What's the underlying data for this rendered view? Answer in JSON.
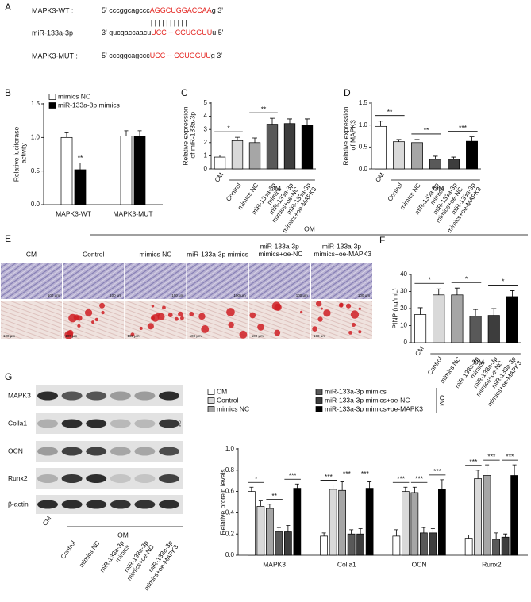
{
  "panel_a": {
    "panel_label": "A",
    "seed_color": "#e3211c",
    "rows": [
      {
        "label": "MAPK3-WT :",
        "sequence": [
          "5' cccggcagccc",
          "AGGCUGGACCAA",
          "g 3'"
        ]
      },
      {
        "label": "miR-133a-3p",
        "sequence": [
          "3' gucgaccaacu",
          "UCC -- CCUGGUU",
          "u 5'"
        ]
      },
      {
        "label": "MAPK3-MUT :",
        "sequence": [
          "5' cccggcagccc",
          "UCC -- CCUGGUU",
          "g 3'"
        ]
      }
    ],
    "pairing": "| | |     |     | | | | | |"
  },
  "chart_data": [
    {
      "type": "bar",
      "panel_label": "B",
      "ylabel": "Relative luciferase activity",
      "categories": [
        "MAPK3-WT",
        "MAPK3-MUT"
      ],
      "series": [
        {
          "name": "mimics NC",
          "color": "#ffffff",
          "values": [
            1.0,
            1.02
          ],
          "errors": [
            0.07,
            0.08
          ]
        },
        {
          "name": "miR-133a-3p mimics",
          "color": "#000000",
          "values": [
            0.52,
            1.02
          ],
          "errors": [
            0.1,
            0.08
          ]
        }
      ],
      "ylim": [
        0,
        1.5
      ],
      "yticks": [
        {
          "value": 0,
          "label": "0.0"
        },
        {
          "value": 0.5,
          "label": "0.5"
        },
        {
          "value": 1,
          "label": "1.0"
        },
        {
          "value": 1.5,
          "label": "1.5"
        }
      ],
      "annotations": [
        {
          "label": "**",
          "category": 0,
          "series": 1
        }
      ]
    },
    {
      "type": "bar",
      "panel_label": "C",
      "ylabel": "Relative expression of miR-133a-3p",
      "categories": [
        "CM",
        "Control",
        "mimics NC",
        "miR-133a-3p mimics",
        "miR-133a-3p mimics+oe-NC",
        "miR-133a-3p mimics+oe-MAPK3"
      ],
      "values": [
        0.9,
        2.15,
        2.0,
        3.4,
        3.45,
        3.3
      ],
      "errors": [
        0.15,
        0.25,
        0.35,
        0.45,
        0.35,
        0.5
      ],
      "colors": [
        "#ffffff",
        "#d9d9d9",
        "#a6a6a6",
        "#595959",
        "#3d3d3d",
        "#000000"
      ],
      "group_label": "OM",
      "ylim": [
        0,
        5
      ],
      "yticks": [
        0,
        1,
        2,
        3,
        4,
        5
      ],
      "annotations": [
        {
          "label": "*",
          "between": [
            0,
            1
          ]
        },
        {
          "label": "**",
          "between": [
            2,
            3
          ]
        }
      ]
    },
    {
      "type": "bar",
      "panel_label": "D",
      "ylabel": "Relative expression of MAPK3",
      "categories": [
        "CM",
        "Control",
        "mimics NC",
        "miR-133a-3p mimics",
        "miR-133a-3p mimics+oe-NC",
        "miR-133a-3p mimics+oe-MAPK3"
      ],
      "values": [
        0.97,
        0.62,
        0.6,
        0.22,
        0.22,
        0.63
      ],
      "errors": [
        0.12,
        0.05,
        0.07,
        0.07,
        0.05,
        0.1
      ],
      "colors": [
        "#ffffff",
        "#d9d9d9",
        "#a6a6a6",
        "#595959",
        "#3d3d3d",
        "#000000"
      ],
      "group_label": "OM",
      "ylim": [
        0,
        1.5
      ],
      "yticks": [
        {
          "value": 0,
          "label": "0.0"
        },
        {
          "value": 0.5,
          "label": "0.5"
        },
        {
          "value": 1,
          "label": "1.0"
        },
        {
          "value": 1.5,
          "label": "1.5"
        }
      ],
      "annotations": [
        {
          "label": "**",
          "between": [
            0,
            1
          ]
        },
        {
          "label": "**",
          "between": [
            2,
            3
          ]
        },
        {
          "label": "***",
          "between": [
            4,
            5
          ]
        }
      ]
    },
    {
      "type": "bar",
      "panel_label": "F",
      "ylabel": "PINP (ng/mL)",
      "categories": [
        "CM",
        "Control",
        "mimics NC",
        "miR-133a-3p mimics",
        "miR-133a-3p mimics+oe-NC",
        "miR-133a-3p mimics+oe-MAPK3"
      ],
      "values": [
        16.5,
        28,
        28,
        15.5,
        16,
        27
      ],
      "errors": [
        4,
        3.5,
        4,
        4,
        4,
        3.5
      ],
      "colors": [
        "#ffffff",
        "#d9d9d9",
        "#a6a6a6",
        "#595959",
        "#3d3d3d",
        "#000000"
      ],
      "group_label": "OM",
      "ylim": [
        0,
        40
      ],
      "yticks": [
        0,
        10,
        20,
        30,
        40
      ],
      "annotations": [
        {
          "label": "*",
          "between": [
            0,
            1
          ]
        },
        {
          "label": "*",
          "between": [
            2,
            3
          ]
        },
        {
          "label": "*",
          "between": [
            4,
            5
          ]
        }
      ]
    },
    {
      "type": "bar",
      "ylabel": "Relative protein levels",
      "categories": [
        "MAPK3",
        "Colla1",
        "OCN",
        "Runx2"
      ],
      "series": [
        {
          "name": "CM",
          "color": "#ffffff",
          "values": [
            0.6,
            0.18,
            0.18,
            0.16
          ],
          "errors": [
            0.04,
            0.03,
            0.06,
            0.03
          ]
        },
        {
          "name": "Control",
          "color": "#d9d9d9",
          "values": [
            0.46,
            0.62,
            0.6,
            0.72
          ],
          "errors": [
            0.05,
            0.04,
            0.04,
            0.08
          ]
        },
        {
          "name": "mimics NC",
          "color": "#a6a6a6",
          "values": [
            0.44,
            0.61,
            0.59,
            0.75
          ],
          "errors": [
            0.04,
            0.08,
            0.05,
            0.1
          ]
        },
        {
          "name": "miR-133a-3p mimics",
          "color": "#595959",
          "values": [
            0.22,
            0.2,
            0.21,
            0.15
          ],
          "errors": [
            0.04,
            0.04,
            0.05,
            0.06
          ]
        },
        {
          "name": "miR-133a-3p mimics+oe-NC",
          "color": "#3d3d3d",
          "values": [
            0.22,
            0.2,
            0.21,
            0.17
          ],
          "errors": [
            0.06,
            0.05,
            0.04,
            0.03
          ]
        },
        {
          "name": "miR-133a-3p mimics+oe-MAPK3",
          "color": "#000000",
          "values": [
            0.63,
            0.63,
            0.62,
            0.75
          ],
          "errors": [
            0.04,
            0.06,
            0.09,
            0.1
          ]
        }
      ],
      "legend_group": "OM",
      "ylim": [
        0,
        1
      ],
      "yticks": [
        {
          "value": 0,
          "label": "0.0"
        },
        {
          "value": 0.2,
          "label": "0.2"
        },
        {
          "value": 0.4,
          "label": "0.4"
        },
        {
          "value": 0.6,
          "label": "0.6"
        },
        {
          "value": 0.8,
          "label": "0.8"
        },
        {
          "value": 1,
          "label": "1.0"
        }
      ],
      "annotations": [
        {
          "label": "*",
          "category": 0,
          "between": [
            0,
            1
          ]
        },
        {
          "label": "**",
          "category": 0,
          "between": [
            2,
            3
          ]
        },
        {
          "label": "***",
          "category": 0,
          "between": [
            4,
            5
          ]
        },
        {
          "label": "***",
          "category": 1,
          "between": [
            0,
            1
          ]
        },
        {
          "label": "***",
          "category": 1,
          "between": [
            2,
            3
          ]
        },
        {
          "label": "***",
          "category": 1,
          "between": [
            4,
            5
          ]
        },
        {
          "label": "***",
          "category": 2,
          "between": [
            0,
            1
          ]
        },
        {
          "label": "***",
          "category": 2,
          "between": [
            2,
            3
          ]
        },
        {
          "label": "***",
          "category": 2,
          "between": [
            4,
            5
          ]
        },
        {
          "label": "***",
          "category": 3,
          "between": [
            0,
            1
          ]
        },
        {
          "label": "***",
          "category": 3,
          "between": [
            2,
            3
          ]
        },
        {
          "label": "***",
          "category": 3,
          "between": [
            4,
            5
          ]
        }
      ]
    }
  ],
  "panel_e": {
    "panel_label": "E",
    "group_label": "OM",
    "scale_bar": "100 μm",
    "columns": [
      "CM",
      "Control",
      "mimics NC",
      "miR-133a-3p mimics",
      "miR-133a-3p mimics+oe-NC",
      "miR-133a-3p mimics+oe-MAPK3"
    ]
  },
  "panel_g": {
    "panel_label": "G",
    "group_label": "OM",
    "side_label": "OM",
    "rows": [
      "MAPK3",
      "Colla1",
      "OCN",
      "Runx2",
      "β-actin"
    ],
    "columns": [
      "CM",
      "Control",
      "mimics NC",
      "miR-133a-3p mimics",
      "miR-133a-3p mimics+oe-NC",
      "miR-133a-3p mimics+oe-MAPK3"
    ]
  }
}
